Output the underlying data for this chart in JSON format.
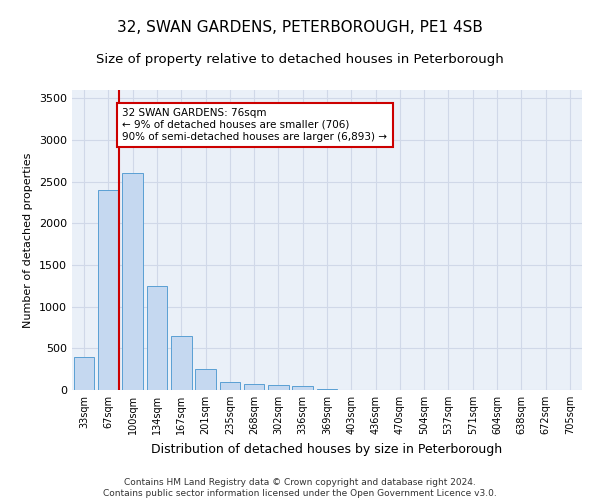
{
  "title": "32, SWAN GARDENS, PETERBOROUGH, PE1 4SB",
  "subtitle": "Size of property relative to detached houses in Peterborough",
  "xlabel": "Distribution of detached houses by size in Peterborough",
  "ylabel": "Number of detached properties",
  "categories": [
    "33sqm",
    "67sqm",
    "100sqm",
    "134sqm",
    "167sqm",
    "201sqm",
    "235sqm",
    "268sqm",
    "302sqm",
    "336sqm",
    "369sqm",
    "403sqm",
    "436sqm",
    "470sqm",
    "504sqm",
    "537sqm",
    "571sqm",
    "604sqm",
    "638sqm",
    "672sqm",
    "705sqm"
  ],
  "values": [
    400,
    2400,
    2600,
    1250,
    650,
    250,
    100,
    70,
    60,
    50,
    10,
    5,
    5,
    5,
    3,
    2,
    2,
    1,
    1,
    1,
    0
  ],
  "bar_color": "#c5d8f0",
  "bar_edge_color": "#5a9fd4",
  "vline_color": "#cc0000",
  "annotation_text": "32 SWAN GARDENS: 76sqm\n← 9% of detached houses are smaller (706)\n90% of semi-detached houses are larger (6,893) →",
  "annotation_box_color": "#ffffff",
  "annotation_box_edge": "#cc0000",
  "ylim": [
    0,
    3600
  ],
  "yticks": [
    0,
    500,
    1000,
    1500,
    2000,
    2500,
    3000,
    3500
  ],
  "grid_color": "#d0d8e8",
  "background_color": "#eaf0f8",
  "footer": "Contains HM Land Registry data © Crown copyright and database right 2024.\nContains public sector information licensed under the Open Government Licence v3.0.",
  "title_fontsize": 11,
  "subtitle_fontsize": 9.5,
  "xlabel_fontsize": 9,
  "ylabel_fontsize": 8,
  "footer_fontsize": 6.5
}
